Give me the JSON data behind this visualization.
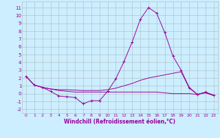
{
  "x": [
    0,
    1,
    2,
    3,
    4,
    5,
    6,
    7,
    8,
    9,
    10,
    11,
    12,
    13,
    14,
    15,
    16,
    17,
    18,
    19,
    20,
    21,
    22,
    23
  ],
  "line1": [
    2.2,
    1.1,
    0.8,
    0.3,
    -0.3,
    -0.4,
    -0.5,
    -1.3,
    -0.9,
    -0.9,
    0.3,
    1.9,
    4.1,
    6.6,
    9.5,
    11.0,
    10.3,
    7.8,
    4.8,
    3.0,
    0.8,
    -0.1,
    0.2,
    -0.2
  ],
  "line2": [
    2.2,
    1.1,
    0.8,
    0.6,
    0.5,
    0.5,
    0.45,
    0.4,
    0.4,
    0.4,
    0.5,
    0.7,
    1.0,
    1.3,
    1.7,
    2.0,
    2.2,
    2.4,
    2.6,
    2.8,
    0.7,
    -0.1,
    0.15,
    -0.25
  ],
  "line3": [
    2.2,
    1.1,
    0.8,
    0.6,
    0.4,
    0.3,
    0.2,
    0.2,
    0.2,
    0.2,
    0.2,
    0.2,
    0.2,
    0.2,
    0.2,
    0.2,
    0.2,
    0.1,
    0.0,
    0.0,
    0.0,
    -0.1,
    0.1,
    -0.25
  ],
  "color": "#990099",
  "bg_color": "#cceeff",
  "grid_color": "#aabbbb",
  "ylim": [
    -2.5,
    11.8
  ],
  "yticks": [
    -2,
    -1,
    0,
    1,
    2,
    3,
    4,
    5,
    6,
    7,
    8,
    9,
    10,
    11
  ],
  "xlabel": "Windchill (Refroidissement éolien,°C)"
}
